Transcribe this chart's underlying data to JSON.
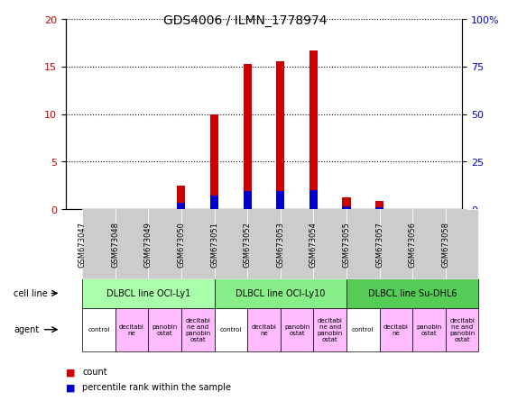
{
  "title": "GDS4006 / ILMN_1778974",
  "samples": [
    "GSM673047",
    "GSM673048",
    "GSM673049",
    "GSM673050",
    "GSM673051",
    "GSM673052",
    "GSM673053",
    "GSM673054",
    "GSM673055",
    "GSM673057",
    "GSM673056",
    "GSM673058"
  ],
  "count_values": [
    0,
    0,
    0,
    2.5,
    10,
    15.3,
    15.6,
    16.7,
    1.3,
    0.9,
    0,
    0
  ],
  "percentile_values": [
    0,
    0,
    0,
    3.4,
    7.3,
    9.5,
    9.6,
    9.9,
    1.7,
    0.85,
    0,
    0
  ],
  "count_color": "#cc0000",
  "percentile_color": "#0000cc",
  "ylim_left": [
    0,
    20
  ],
  "ylim_right": [
    0,
    100
  ],
  "yticks_left": [
    0,
    5,
    10,
    15,
    20
  ],
  "yticks_right": [
    0,
    25,
    50,
    75,
    100
  ],
  "cell_lines": [
    {
      "label": "DLBCL line OCI-Ly1",
      "start": 0,
      "end": 4,
      "color": "#99ff99"
    },
    {
      "label": "DLBCL line OCI-Ly10",
      "start": 4,
      "end": 8,
      "color": "#66ff66"
    },
    {
      "label": "DLBCL line Su-DHL6",
      "start": 8,
      "end": 12,
      "color": "#33cc33"
    }
  ],
  "agents": [
    {
      "label": "control",
      "indices": [
        0,
        4,
        8
      ]
    },
    {
      "label": "decitabi\nne",
      "indices": [
        1,
        5,
        9
      ]
    },
    {
      "label": "panobin\nostat",
      "indices": [
        2,
        6,
        10
      ]
    },
    {
      "label": "decitabi\nne and\npanobin\nostat",
      "indices": [
        3,
        7,
        11
      ]
    }
  ],
  "agent_colors": [
    "#ffffff",
    "#ffaaff",
    "#ffaaff",
    "#ffaaff"
  ],
  "tick_bg_color": "#cccccc",
  "cell_line_bg_colors": [
    "#aaffaa",
    "#aaffaa",
    "#55cc55"
  ],
  "agent_row_color": "#ffaaff"
}
